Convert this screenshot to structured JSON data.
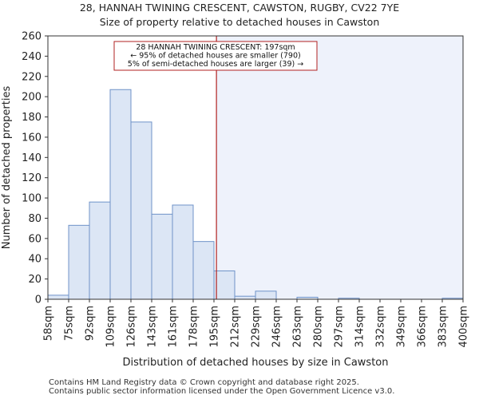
{
  "title": "28, HANNAH TWINING CRESCENT, CAWSTON, RUGBY, CV22 7YE",
  "subtitle": "Size of property relative to detached houses in Cawston",
  "footer": [
    "Contains HM Land Registry data © Crown copyright and database right 2025.",
    "Contains public sector information licensed under the Open Government Licence v3.0."
  ],
  "chart_data": {
    "type": "bar",
    "title": "Size of property relative to detached houses in Cawston",
    "xlabel": "Distribution of detached houses by size in Cawston",
    "ylabel": "Number of detached properties",
    "ylim": [
      0,
      260
    ],
    "yticks": [
      0,
      20,
      40,
      60,
      80,
      100,
      120,
      140,
      160,
      180,
      200,
      220,
      240,
      260
    ],
    "bin_edges": [
      "58sqm",
      "75sqm",
      "92sqm",
      "109sqm",
      "126sqm",
      "143sqm",
      "161sqm",
      "178sqm",
      "195sqm",
      "212sqm",
      "229sqm",
      "246sqm",
      "263sqm",
      "280sqm",
      "297sqm",
      "314sqm",
      "332sqm",
      "349sqm",
      "366sqm",
      "383sqm",
      "400sqm"
    ],
    "values": [
      4,
      73,
      96,
      207,
      175,
      84,
      93,
      57,
      28,
      3,
      8,
      0,
      2,
      0,
      1,
      0,
      0,
      0,
      0,
      1
    ],
    "property_bin_position": 8.12,
    "annotation": [
      "28 HANNAH TWINING CRESCENT: 197sqm",
      "← 95% of detached houses are smaller (790)",
      "5% of semi-detached houses are larger (39) →"
    ],
    "colors": {
      "bar_fill": "#dce6f5",
      "bar_stroke": "#6f93c8",
      "highlight_fill": "#eef2fb",
      "marker_line": "#b22222",
      "annotation_border": "#b22222"
    }
  }
}
